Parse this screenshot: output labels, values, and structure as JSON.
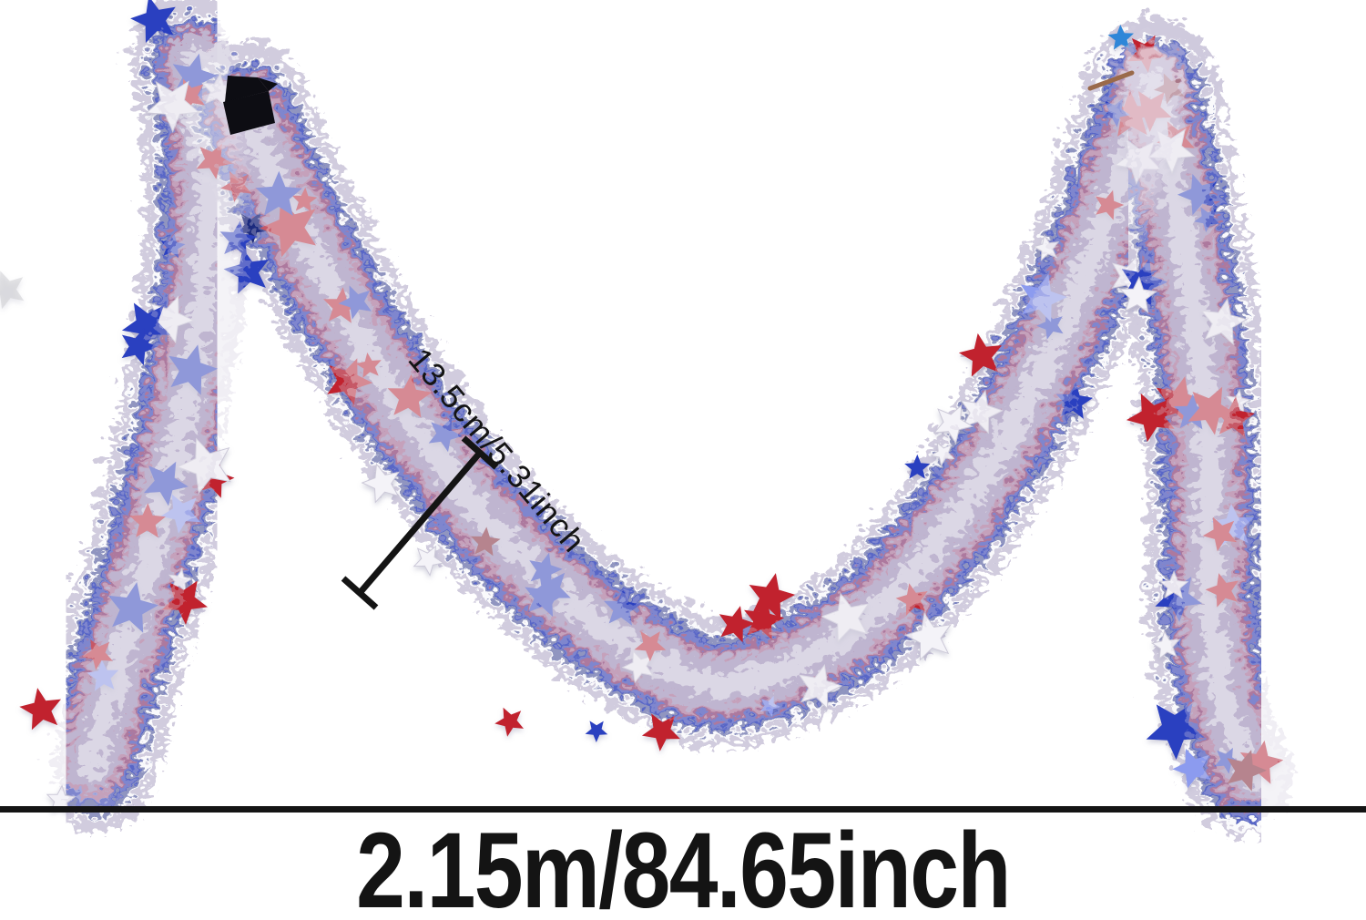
{
  "meta": {
    "description": "Product photo of a red, white and blue star tinsel garland draped in an M shape on a white background, with measurement annotations",
    "background": "#ffffff"
  },
  "annotations": {
    "width_label": "13.5cm/5.31inch",
    "length_label": "2.15m/84.65inch"
  },
  "palette": {
    "annotation": "#141414",
    "star_red": "#c1232e",
    "star_dark_red": "#7c1420",
    "star_blue": "#2b3fc0",
    "star_navy": "#1b2a7e",
    "star_light_blue": "#2f86d8",
    "star_periwinkle": "#8c9bef",
    "star_white": "#f4f3f8",
    "tinsel_silver": "#cfc9dc",
    "tinsel_white": "#ffffff",
    "tinsel_blue": "#4a5ac8",
    "tinsel_red": "#c24a5a",
    "tinsel_lavender": "#8d83b5",
    "tinsel_navy": "#273286",
    "clip_black": "#0d0d13",
    "wire_brown": "#9a6a4a",
    "ghost_gray": "#c9c9ce"
  }
}
